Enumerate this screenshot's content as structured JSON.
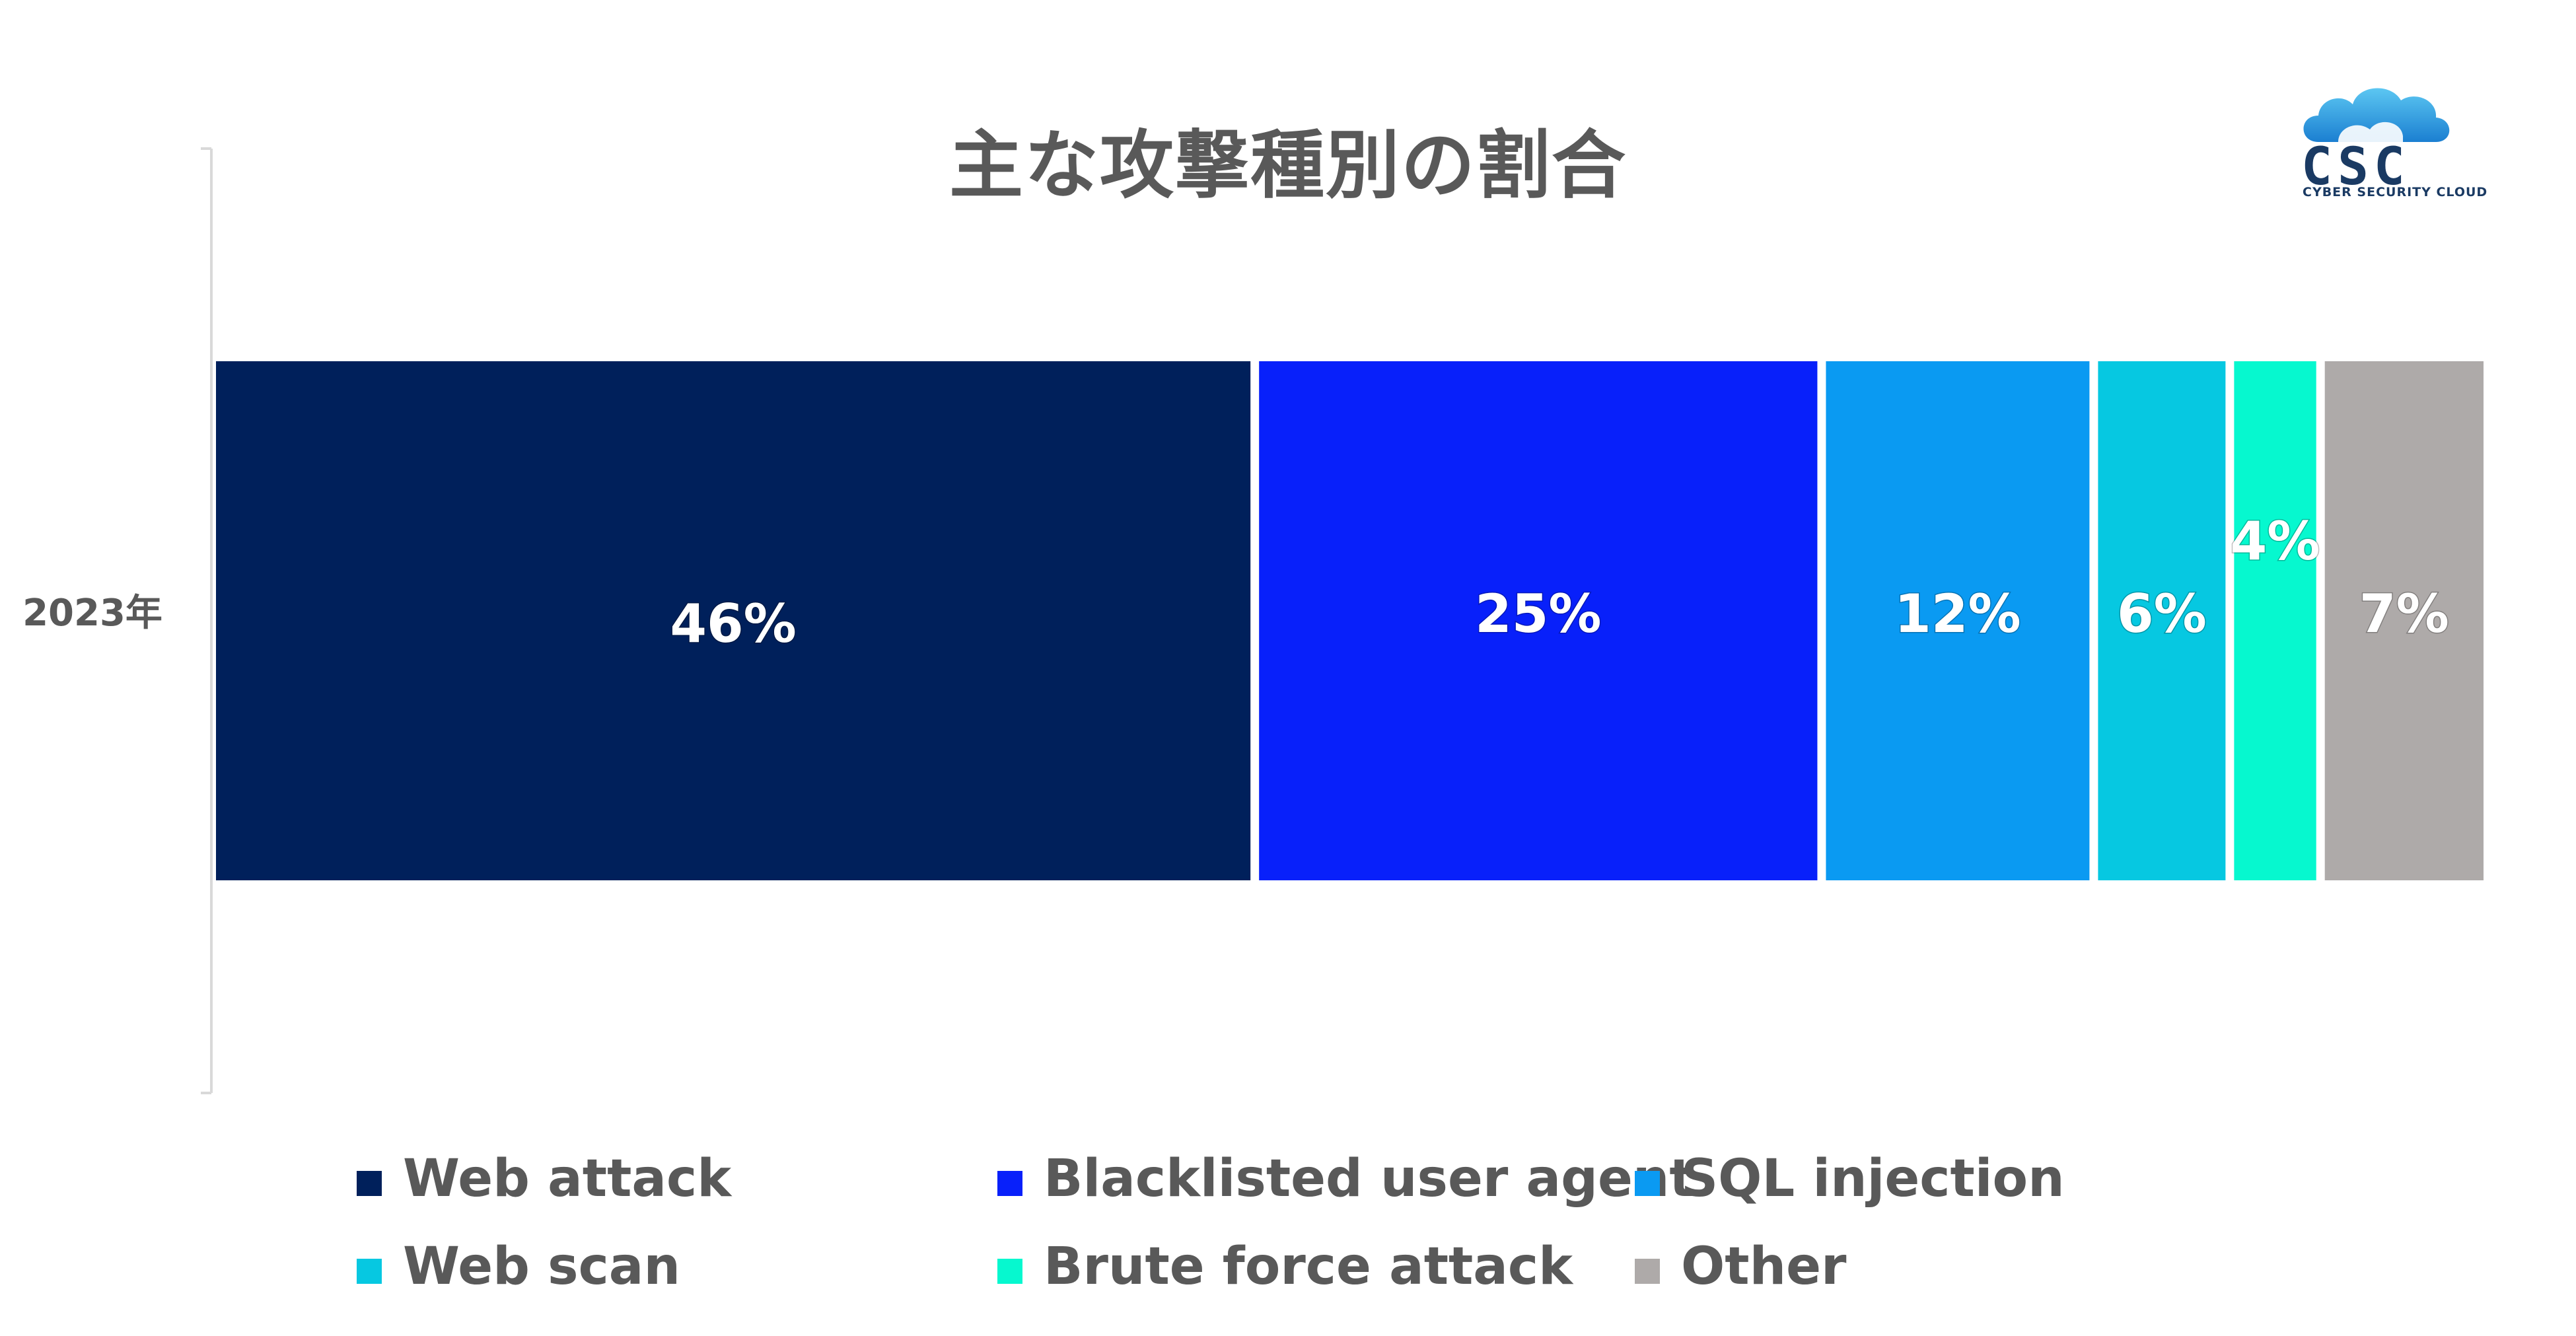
{
  "title": "主な攻撃種別の割合",
  "logo": {
    "letters": "CSC",
    "subtitle": "CYBER SECURITY CLOUD",
    "color": "#1a3a63"
  },
  "chart_data": {
    "type": "bar",
    "orientation": "horizontal",
    "stacked": true,
    "normalized_percent": true,
    "categories": [
      "2023年"
    ],
    "series": [
      {
        "name": "Web attack",
        "values": [
          46
        ],
        "label": "46%",
        "color": "#00205b"
      },
      {
        "name": "Blacklisted user agent",
        "values": [
          25
        ],
        "label": "25%",
        "color": "#0820fa"
      },
      {
        "name": "SQL injection",
        "values": [
          12
        ],
        "label": "12%",
        "color": "#0a9af2"
      },
      {
        "name": "Web scan",
        "values": [
          6
        ],
        "label": "6%",
        "color": "#06c8e1"
      },
      {
        "name": "Brute force attack",
        "values": [
          4
        ],
        "label": "4%",
        "color": "#06f8cf"
      },
      {
        "name": "Other",
        "values": [
          7
        ],
        "label": "7%",
        "color": "#aeaaa9"
      }
    ],
    "xlim": [
      0,
      100
    ],
    "legend_position": "bottom",
    "grid": false
  }
}
